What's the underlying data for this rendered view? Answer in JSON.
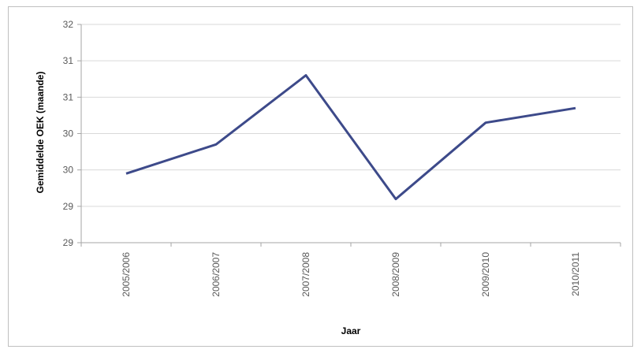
{
  "chart_data": {
    "type": "line",
    "title": "",
    "xlabel": "Jaar",
    "ylabel": "Gemiddelde OEK (maande)",
    "categories": [
      "2005/2006",
      "2006/2007",
      "2007/2008",
      "2008/2009",
      "2009/2010",
      "2010/2011"
    ],
    "y_tick_labels": [
      "29",
      "29",
      "30",
      "30",
      "31",
      "31",
      "32"
    ],
    "ylim": [
      29,
      32
    ],
    "grid": true,
    "legend": "none",
    "series": [
      {
        "values": [
          29.95,
          30.35,
          31.3,
          29.6,
          30.65,
          30.85
        ],
        "color": "#3d4a8a"
      }
    ],
    "colors": {
      "line": "#3d4a8a",
      "grid": "#d9d9d9",
      "axis": "#a6a6a6"
    }
  }
}
